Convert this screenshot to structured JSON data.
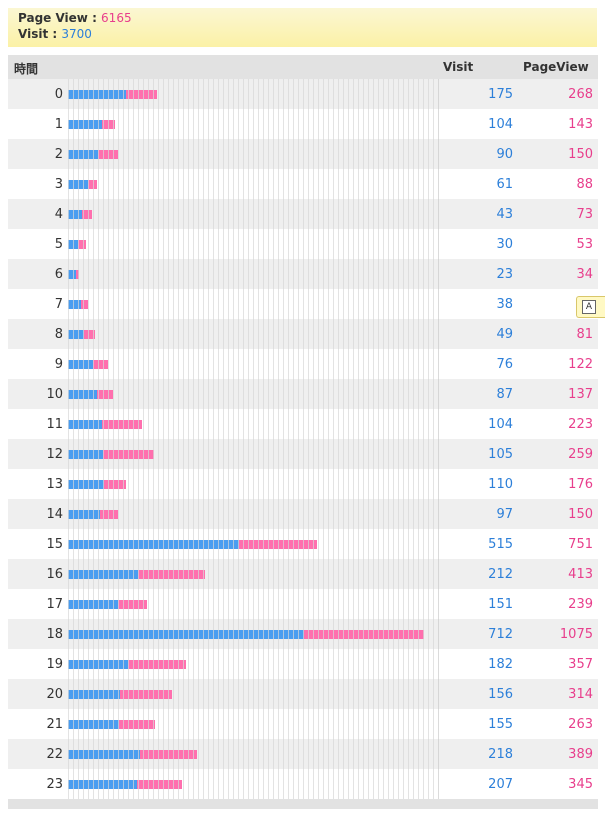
{
  "summary": {
    "pageview_label": "Page View",
    "pageview_value": "6165",
    "visit_label": "Visit",
    "visit_value": "3700"
  },
  "header": {
    "hour_col": "時間",
    "visit_col": "Visit",
    "pageview_col": "PageView"
  },
  "colors": {
    "visit": "#4a9df0",
    "pageview": "#ff6fae"
  },
  "tooltip_icon": "magnifier-icon",
  "chart_data": {
    "type": "bar",
    "orientation": "horizontal",
    "stacked_overlay": true,
    "categories": [
      "0",
      "1",
      "2",
      "3",
      "4",
      "5",
      "6",
      "7",
      "8",
      "9",
      "10",
      "11",
      "12",
      "13",
      "14",
      "15",
      "16",
      "17",
      "18",
      "19",
      "20",
      "21",
      "22",
      "23"
    ],
    "series": [
      {
        "name": "Visit",
        "values": [
          175,
          104,
          90,
          61,
          43,
          30,
          23,
          38,
          49,
          76,
          87,
          104,
          105,
          110,
          97,
          515,
          212,
          151,
          712,
          182,
          156,
          155,
          218,
          207
        ]
      },
      {
        "name": "PageView",
        "values": [
          268,
          143,
          150,
          88,
          73,
          53,
          34,
          null,
          81,
          122,
          137,
          223,
          259,
          176,
          150,
          751,
          413,
          239,
          1075,
          357,
          314,
          263,
          389,
          345
        ]
      }
    ],
    "xlim": [
      0,
      1120
    ],
    "xlabel": "",
    "ylabel": "時間"
  }
}
